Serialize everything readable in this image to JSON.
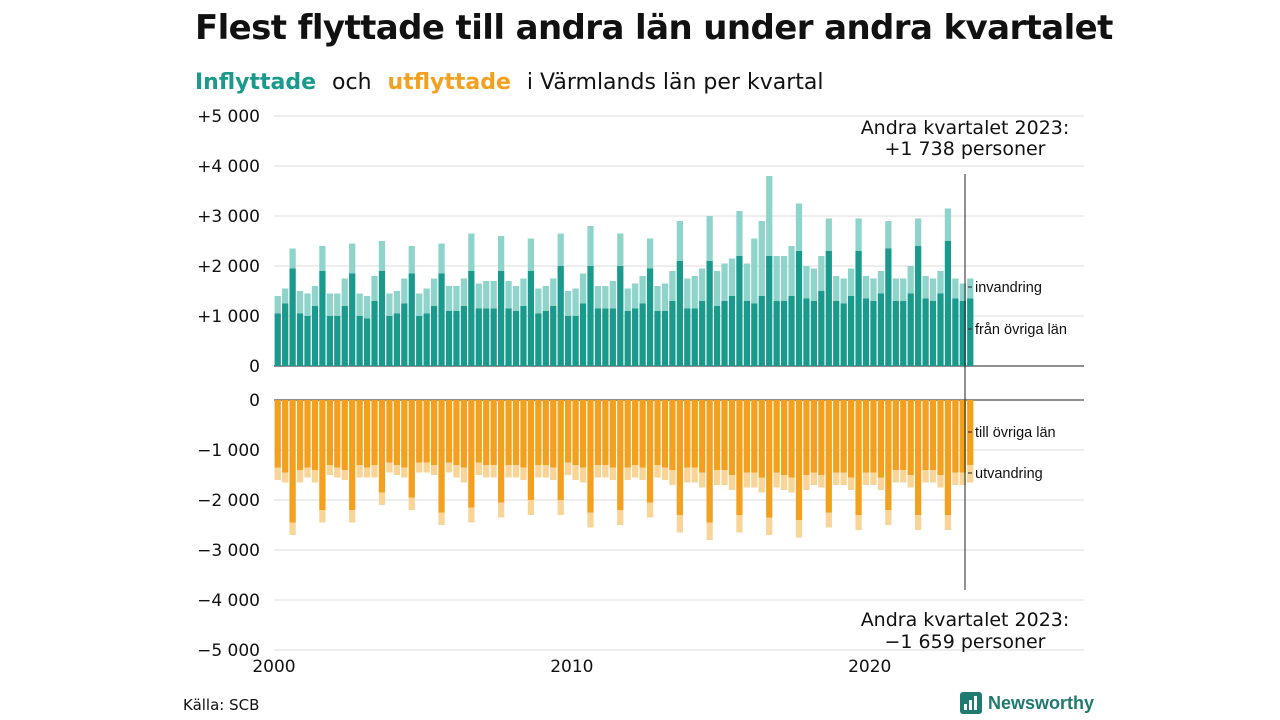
{
  "title": "Flest flyttade till andra län under andra kvartalet",
  "subtitle": {
    "inflyttade": "Inflyttade",
    "och": "och",
    "utflyttade": "utflyttade",
    "rest": "i Värmlands län per kvartal"
  },
  "source": "Källa: SCB",
  "brand": "Newsworthy",
  "colors": {
    "in_dark": "#1a9a8c",
    "in_light": "#8fd4cb",
    "out_dark": "#f2a01e",
    "out_light": "#f8d497"
  },
  "chart_data": {
    "type": "bar",
    "stacked": true,
    "x_unit": "kvartal",
    "x_start": "2000 Q1",
    "x_end": "2023 Q2",
    "xticks": [
      "2000",
      "2010",
      "2020"
    ],
    "yticks": [
      "+5 000",
      "+4 000",
      "+3 000",
      "+2 000",
      "+1 000",
      "0",
      "0",
      "−1 000",
      "−2 000",
      "−3 000",
      "−4 000",
      "−5 000"
    ],
    "ylim_in": [
      0,
      5000
    ],
    "ylim_out": [
      -5000,
      0
    ],
    "grid": true,
    "series": [
      {
        "name": "från övriga län",
        "values": [
          1050,
          1250,
          1950,
          1050,
          1000,
          1200,
          1900,
          1000,
          1000,
          1200,
          1850,
          1000,
          950,
          1300,
          1900,
          1000,
          1050,
          1250,
          1850,
          1000,
          1050,
          1200,
          1850,
          1100,
          1100,
          1200,
          1900,
          1150,
          1150,
          1150,
          1900,
          1150,
          1100,
          1200,
          1900,
          1050,
          1100,
          1200,
          2000,
          1000,
          1000,
          1250,
          2000,
          1150,
          1150,
          1150,
          2000,
          1100,
          1150,
          1250,
          1950,
          1100,
          1100,
          1300,
          2100,
          1150,
          1150,
          1300,
          2100,
          1200,
          1300,
          1400,
          2200,
          1300,
          1250,
          1400,
          2200,
          1300,
          1300,
          1400,
          2300,
          1350,
          1300,
          1500,
          2300,
          1300,
          1250,
          1400,
          2300,
          1350,
          1300,
          1450,
          2350,
          1300,
          1300,
          1450,
          2400,
          1350,
          1300,
          1450,
          2500,
          1350,
          1300,
          1350
        ],
        "color": "#1a9a8c"
      },
      {
        "name": "invandring",
        "values": [
          350,
          300,
          400,
          450,
          450,
          400,
          500,
          450,
          450,
          550,
          600,
          450,
          450,
          500,
          600,
          450,
          450,
          500,
          550,
          450,
          500,
          550,
          600,
          500,
          500,
          550,
          750,
          500,
          550,
          550,
          700,
          550,
          500,
          550,
          650,
          500,
          500,
          550,
          650,
          500,
          550,
          600,
          800,
          450,
          450,
          550,
          650,
          450,
          500,
          550,
          600,
          500,
          550,
          600,
          800,
          600,
          650,
          650,
          900,
          700,
          750,
          750,
          900,
          750,
          1300,
          1500,
          1600,
          900,
          900,
          1000,
          950,
          650,
          650,
          700,
          650,
          500,
          500,
          550,
          650,
          450,
          450,
          450,
          550,
          450,
          450,
          550,
          550,
          450,
          450,
          450,
          650,
          400,
          350,
          400
        ],
        "color": "#8fd4cb"
      },
      {
        "name": "till övriga län",
        "values": [
          -1350,
          -1450,
          -2450,
          -1400,
          -1350,
          -1400,
          -2200,
          -1300,
          -1350,
          -1400,
          -2200,
          -1300,
          -1350,
          -1300,
          -1850,
          -1250,
          -1300,
          -1350,
          -1950,
          -1250,
          -1250,
          -1300,
          -2250,
          -1250,
          -1300,
          -1350,
          -2150,
          -1250,
          -1300,
          -1300,
          -2050,
          -1300,
          -1300,
          -1350,
          -2000,
          -1300,
          -1300,
          -1350,
          -2000,
          -1250,
          -1300,
          -1350,
          -2250,
          -1300,
          -1300,
          -1350,
          -2200,
          -1350,
          -1300,
          -1350,
          -2050,
          -1300,
          -1350,
          -1400,
          -2300,
          -1350,
          -1350,
          -1450,
          -2450,
          -1400,
          -1400,
          -1500,
          -2300,
          -1450,
          -1450,
          -1550,
          -2350,
          -1450,
          -1500,
          -1550,
          -2400,
          -1500,
          -1450,
          -1500,
          -2250,
          -1450,
          -1450,
          -1550,
          -2300,
          -1450,
          -1450,
          -1550,
          -2200,
          -1400,
          -1400,
          -1500,
          -2300,
          -1400,
          -1400,
          -1500,
          -2300,
          -1450,
          -1450,
          -1300
        ],
        "color": "#f2a01e"
      },
      {
        "name": "utvandring",
        "values": [
          -250,
          -200,
          -250,
          -250,
          -200,
          -250,
          -250,
          -200,
          -200,
          -200,
          -250,
          -250,
          -200,
          -250,
          -250,
          -200,
          -200,
          -200,
          -250,
          -200,
          -200,
          -200,
          -250,
          -200,
          -250,
          -300,
          -300,
          -250,
          -250,
          -250,
          -300,
          -250,
          -250,
          -250,
          -300,
          -250,
          -250,
          -250,
          -300,
          -250,
          -300,
          -300,
          -300,
          -250,
          -250,
          -250,
          -300,
          -250,
          -250,
          -250,
          -300,
          -250,
          -250,
          -300,
          -350,
          -300,
          -300,
          -300,
          -350,
          -300,
          -300,
          -300,
          -350,
          -300,
          -300,
          -300,
          -350,
          -300,
          -300,
          -300,
          -350,
          -300,
          -250,
          -250,
          -300,
          -250,
          -250,
          -250,
          -300,
          -250,
          -250,
          -250,
          -300,
          -250,
          -250,
          -250,
          -300,
          -250,
          -250,
          -250,
          -300,
          -250,
          -250,
          -350
        ],
        "color": "#f8d497"
      }
    ],
    "annotations": [
      {
        "text": "Andra kvartalet 2023:",
        "value": "+1 738 personer"
      },
      {
        "text": "Andra kvartalet 2023:",
        "value": "−1 659 personer"
      }
    ],
    "series_labels": [
      "invandring",
      "från övriga län",
      "till övriga län",
      "utvandring"
    ]
  }
}
